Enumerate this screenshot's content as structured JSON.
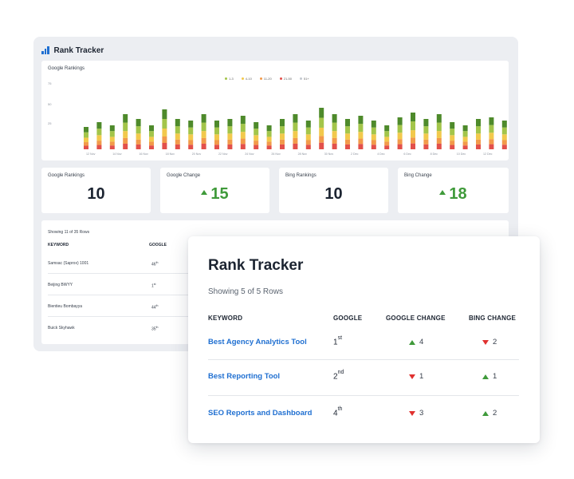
{
  "back": {
    "title": "Rank Tracker",
    "icon": "bar-chart-icon",
    "chart": {
      "title": "Google Rankings",
      "legend": [
        {
          "label": "1-3",
          "color": "#a3c54a"
        },
        {
          "label": "4-10",
          "color": "#f2c94c"
        },
        {
          "label": "11-20",
          "color": "#f29a4a"
        },
        {
          "label": "21-50",
          "color": "#e2504b"
        },
        {
          "label": "51+",
          "color": "#c3c8cf"
        }
      ],
      "y_ticks": [
        "75",
        "50",
        "25"
      ],
      "x_ticks": [
        "12 Nov",
        "14 Nov",
        "16 Nov",
        "18 Nov",
        "20 Nov",
        "22 Nov",
        "24 Nov",
        "26 Nov",
        "28 Nov",
        "30 Nov",
        "2 Dec",
        "4 Dec",
        "6 Dec",
        "8 Dec",
        "10 Dec",
        "12 Dec"
      ]
    },
    "stats": [
      {
        "label": "Google Rankings",
        "value": "10",
        "up": false
      },
      {
        "label": "Google Change",
        "value": "15",
        "up": true
      },
      {
        "label": "Bing Rankings",
        "value": "10",
        "up": false
      },
      {
        "label": "Bing Change",
        "value": "18",
        "up": true
      }
    ],
    "table": {
      "showing": "Showing 11 of 35 Rows",
      "col_keyword": "KEYWORD",
      "col_google": "GOOGLE",
      "rows": [
        {
          "keyword": "Samsac (Saprox) 1001",
          "rank": "46",
          "suffix": "th"
        },
        {
          "keyword": "Beijing BWYY",
          "rank": "1",
          "suffix": "st"
        },
        {
          "keyword": "Bientieu Bombayya",
          "rank": "44",
          "suffix": "th"
        },
        {
          "keyword": "Buick Skyhawk",
          "rank": "35",
          "suffix": "th"
        }
      ]
    }
  },
  "front": {
    "title": "Rank Tracker",
    "showing": "Showing 5 of 5 Rows",
    "headers": {
      "keyword": "KEYWORD",
      "google": "GOOGLE",
      "google_change": "GOOGLE CHANGE",
      "bing_change": "BING CHANGE"
    },
    "rows": [
      {
        "keyword": "Best Agency Analytics Tool",
        "rank": "1",
        "suffix": "st",
        "google_change": "4",
        "google_dir": "up",
        "bing_change": "2",
        "bing_dir": "down"
      },
      {
        "keyword": "Best Reporting Tool",
        "rank": "2",
        "suffix": "nd",
        "google_change": "1",
        "google_dir": "down",
        "bing_change": "1",
        "bing_dir": "up"
      },
      {
        "keyword": "SEO Reports and Dashboard",
        "rank": "4",
        "suffix": "th",
        "google_change": "3",
        "google_dir": "down",
        "bing_change": "2",
        "bing_dir": "up"
      }
    ]
  },
  "colors": {
    "accent": "#1f6fd1",
    "up": "#3f9a3a",
    "down": "#e0312f"
  }
}
